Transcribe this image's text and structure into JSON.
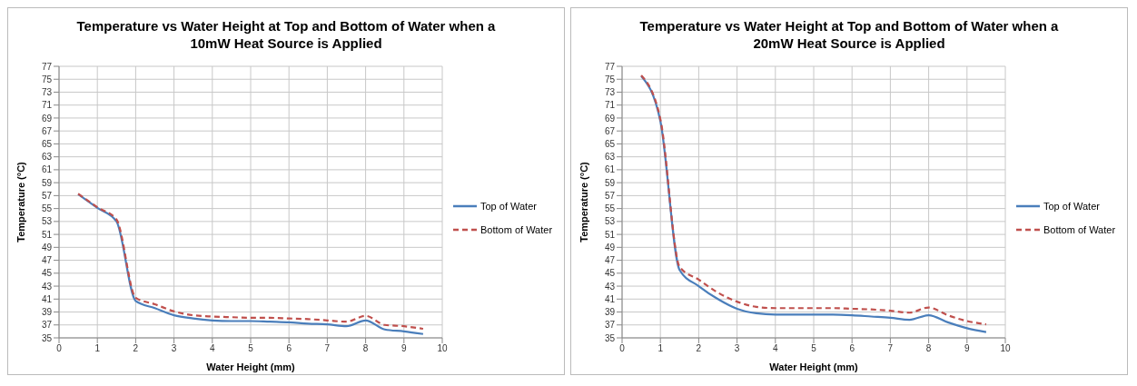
{
  "chart_data": [
    {
      "type": "line",
      "title": "Temperature vs Water Height at Top and Bottom of Water when a 10mW Heat Source is Applied",
      "xlabel": "Water Height (mm)",
      "ylabel": "Temperature (°C)",
      "x": [
        0.5,
        1,
        1.5,
        2,
        2.5,
        3,
        3.5,
        4,
        4.5,
        5,
        5.5,
        6,
        6.5,
        7,
        7.5,
        8,
        8.5,
        9,
        9.5
      ],
      "series": [
        {
          "name": "Top of Water",
          "color": "#4a7ebb",
          "line_style": "solid",
          "values": [
            57.2,
            55.1,
            53.0,
            40.7,
            39.6,
            38.5,
            38.0,
            37.7,
            37.6,
            37.6,
            37.5,
            37.4,
            37.2,
            37.1,
            36.8,
            37.7,
            36.3,
            36.0,
            35.6
          ]
        },
        {
          "name": "Bottom of Water",
          "color": "#c0504d",
          "line_style": "dashed",
          "values": [
            57.3,
            55.2,
            53.3,
            41.2,
            40.2,
            39.1,
            38.5,
            38.3,
            38.2,
            38.1,
            38.1,
            38.0,
            37.9,
            37.7,
            37.5,
            38.4,
            37.0,
            36.8,
            36.4
          ]
        }
      ],
      "xlim": [
        0,
        10
      ],
      "xticks": [
        0,
        1,
        2,
        3,
        4,
        5,
        6,
        7,
        8,
        9,
        10
      ],
      "ylim": [
        35,
        77
      ],
      "yticks": [
        35,
        37,
        39,
        41,
        43,
        45,
        47,
        49,
        51,
        53,
        55,
        57,
        59,
        61,
        63,
        65,
        67,
        69,
        71,
        73,
        75,
        77
      ],
      "grid": true,
      "legend": "right"
    },
    {
      "type": "line",
      "title": "Temperature vs Water Height at Top and Bottom of Water when a 20mW Heat Source is Applied",
      "xlabel": "Water Height (mm)",
      "ylabel": "Temperature (°C)",
      "x": [
        0.5,
        1,
        1.5,
        2,
        2.5,
        3,
        3.5,
        4,
        4.5,
        5,
        5.5,
        6,
        6.5,
        7,
        7.5,
        8,
        8.5,
        9,
        9.5
      ],
      "series": [
        {
          "name": "Top of Water",
          "color": "#4a7ebb",
          "line_style": "solid",
          "values": [
            75.5,
            68.5,
            45.5,
            43.0,
            41.0,
            39.5,
            38.8,
            38.6,
            38.6,
            38.6,
            38.6,
            38.5,
            38.3,
            38.1,
            37.8,
            38.5,
            37.4,
            36.5,
            35.9
          ]
        },
        {
          "name": "Bottom of Water",
          "color": "#c0504d",
          "line_style": "dashed",
          "values": [
            75.6,
            68.8,
            46.0,
            44.0,
            42.0,
            40.6,
            39.8,
            39.6,
            39.6,
            39.6,
            39.6,
            39.5,
            39.4,
            39.2,
            38.9,
            39.7,
            38.5,
            37.6,
            37.1
          ]
        }
      ],
      "xlim": [
        0,
        10
      ],
      "xticks": [
        0,
        1,
        2,
        3,
        4,
        5,
        6,
        7,
        8,
        9,
        10
      ],
      "ylim": [
        35,
        77
      ],
      "yticks": [
        35,
        37,
        39,
        41,
        43,
        45,
        47,
        49,
        51,
        53,
        55,
        57,
        59,
        61,
        63,
        65,
        67,
        69,
        71,
        73,
        75,
        77
      ],
      "grid": true,
      "legend": "right"
    }
  ]
}
